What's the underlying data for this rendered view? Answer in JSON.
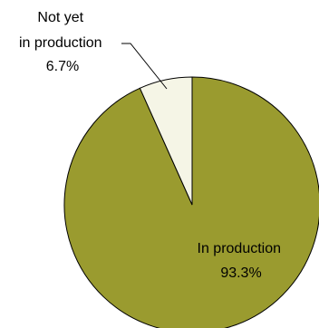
{
  "chart_data": {
    "type": "pie",
    "slices": [
      {
        "label_lines": [
          "In production"
        ],
        "value": 93.3,
        "value_label": "93.3%",
        "color": "#9a9b2f"
      },
      {
        "label_lines": [
          "Not yet",
          "in production"
        ],
        "value": 6.7,
        "value_label": "6.7%",
        "color": "#f5f5e6"
      }
    ],
    "start_angle_deg": 0,
    "direction": "clockwise",
    "outline_color": "#000000",
    "label_placement": [
      "inside",
      "outside-leader"
    ]
  }
}
